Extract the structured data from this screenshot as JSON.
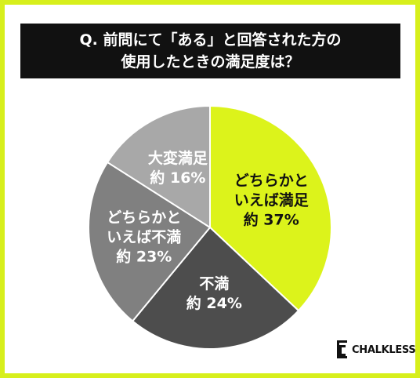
{
  "chart_data": {
    "type": "pie",
    "title": [
      "Q. 前問にて「ある」と回答された方の",
      "使用したときの満足度は？"
    ],
    "categories": [
      "どちらかといえば満足",
      "不満",
      "どちらかといえば不満",
      "大変満足"
    ],
    "values": [
      37,
      24,
      23,
      16
    ],
    "value_labels": [
      "約 37%",
      "約 24%",
      "約 23%",
      "約 16%"
    ],
    "colors": [
      "#dcf31b",
      "#4d4d4d",
      "#808080",
      "#a8a8a8"
    ],
    "label_colors": [
      "#111111",
      "#ffffff",
      "#ffffff",
      "#ffffff"
    ]
  },
  "brand": "CHALKLESS"
}
